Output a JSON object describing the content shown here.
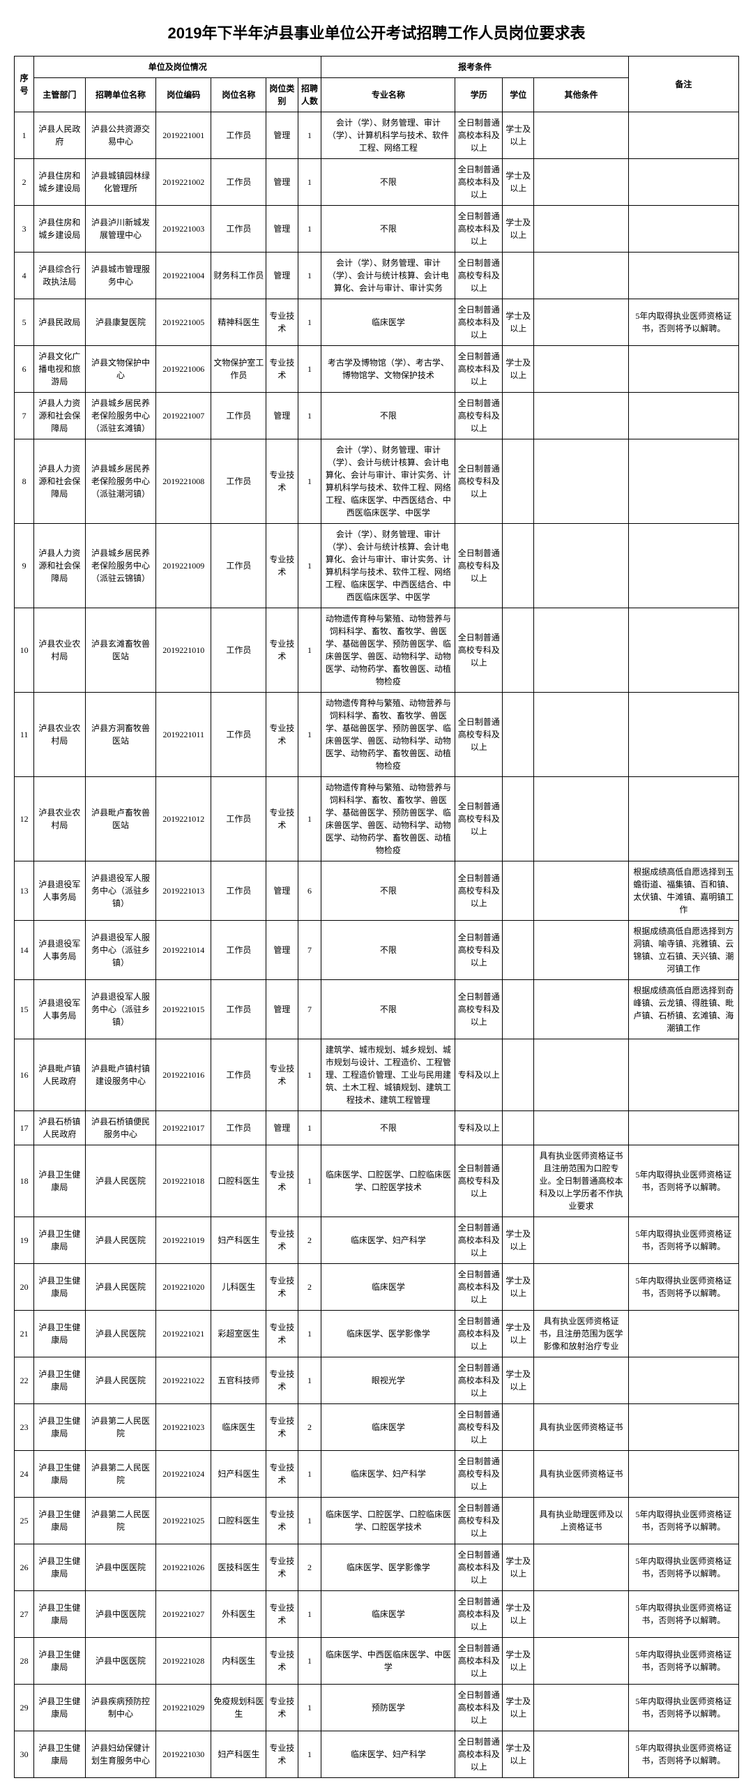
{
  "title": "2019年下半年泸县事业单位公开考试招聘工作人员岗位要求表",
  "headers": {
    "seq": "序号",
    "unit_group": "单位及岗位情况",
    "dept": "主管部门",
    "unit": "招聘单位名称",
    "code": "岗位编码",
    "pname": "岗位名称",
    "ptype": "岗位类别",
    "count": "招聘人数",
    "req_group": "报考条件",
    "spec": "专业名称",
    "edu": "学历",
    "deg": "学位",
    "other": "其他条件",
    "remark": "备注"
  },
  "rows": [
    {
      "seq": "1",
      "dept": "泸县人民政府",
      "unit": "泸县公共资源交易中心",
      "code": "2019221001",
      "pname": "工作员",
      "ptype": "管理",
      "count": "1",
      "spec": "会计（学）、财务管理、审计（学）、计算机科学与技术、软件工程、网络工程",
      "edu": "全日制普通高校本科及以上",
      "deg": "学士及以上",
      "other": "",
      "remark": ""
    },
    {
      "seq": "2",
      "dept": "泸县住房和城乡建设局",
      "unit": "泸县城镇园林绿化管理所",
      "code": "2019221002",
      "pname": "工作员",
      "ptype": "管理",
      "count": "1",
      "spec": "不限",
      "edu": "全日制普通高校本科及以上",
      "deg": "学士及以上",
      "other": "",
      "remark": ""
    },
    {
      "seq": "3",
      "dept": "泸县住房和城乡建设局",
      "unit": "泸县泸川新城发展管理中心",
      "code": "2019221003",
      "pname": "工作员",
      "ptype": "管理",
      "count": "1",
      "spec": "不限",
      "edu": "全日制普通高校本科及以上",
      "deg": "学士及以上",
      "other": "",
      "remark": ""
    },
    {
      "seq": "4",
      "dept": "泸县综合行政执法局",
      "unit": "泸县城市管理服务中心",
      "code": "2019221004",
      "pname": "财务科工作员",
      "ptype": "管理",
      "count": "1",
      "spec": "会计（学）、财务管理、审计（学）、会计与统计核算、会计电算化、会计与审计、审计实务",
      "edu": "全日制普通高校专科及以上",
      "deg": "",
      "other": "",
      "remark": ""
    },
    {
      "seq": "5",
      "dept": "泸县民政局",
      "unit": "泸县康复医院",
      "code": "2019221005",
      "pname": "精神科医生",
      "ptype": "专业技术",
      "count": "1",
      "spec": "临床医学",
      "edu": "全日制普通高校本科及以上",
      "deg": "学士及以上",
      "other": "",
      "remark": "5年内取得执业医师资格证书，否则将予以解聘。"
    },
    {
      "seq": "6",
      "dept": "泸县文化广播电视和旅游局",
      "unit": "泸县文物保护中心",
      "code": "2019221006",
      "pname": "文物保护室工作员",
      "ptype": "专业技术",
      "count": "1",
      "spec": "考古学及博物馆（学）、考古学、博物馆学、文物保护技术",
      "edu": "全日制普通高校本科及以上",
      "deg": "学士及以上",
      "other": "",
      "remark": ""
    },
    {
      "seq": "7",
      "dept": "泸县人力资源和社会保障局",
      "unit": "泸县城乡居民养老保险服务中心（派驻玄滩镇）",
      "code": "2019221007",
      "pname": "工作员",
      "ptype": "管理",
      "count": "1",
      "spec": "不限",
      "edu": "全日制普通高校专科及以上",
      "deg": "",
      "other": "",
      "remark": ""
    },
    {
      "seq": "8",
      "dept": "泸县人力资源和社会保障局",
      "unit": "泸县城乡居民养老保险服务中心（派驻潮河镇）",
      "code": "2019221008",
      "pname": "工作员",
      "ptype": "专业技术",
      "count": "1",
      "spec": "会计（学）、财务管理、审计（学）、会计与统计核算、会计电算化、会计与审计、审计实务、计算机科学与技术、软件工程、网络工程、临床医学、中西医结合、中西医临床医学、中医学",
      "edu": "全日制普通高校专科及以上",
      "deg": "",
      "other": "",
      "remark": ""
    },
    {
      "seq": "9",
      "dept": "泸县人力资源和社会保障局",
      "unit": "泸县城乡居民养老保险服务中心（派驻云锦镇）",
      "code": "2019221009",
      "pname": "工作员",
      "ptype": "专业技术",
      "count": "1",
      "spec": "会计（学）、财务管理、审计（学）、会计与统计核算、会计电算化、会计与审计、审计实务、计算机科学与技术、软件工程、网络工程、临床医学、中西医结合、中西医临床医学、中医学",
      "edu": "全日制普通高校专科及以上",
      "deg": "",
      "other": "",
      "remark": ""
    },
    {
      "seq": "10",
      "dept": "泸县农业农村局",
      "unit": "泸县玄滩畜牧兽医站",
      "code": "2019221010",
      "pname": "工作员",
      "ptype": "专业技术",
      "count": "1",
      "spec": "动物遗传育种与繁殖、动物营养与饲料科学、畜牧、畜牧学、兽医学、基础兽医学、预防兽医学、临床兽医学、兽医、动物科学、动物医学、动物药学、畜牧兽医、动植物检疫",
      "edu": "全日制普通高校专科及以上",
      "deg": "",
      "other": "",
      "remark": ""
    },
    {
      "seq": "11",
      "dept": "泸县农业农村局",
      "unit": "泸县方洞畜牧兽医站",
      "code": "2019221011",
      "pname": "工作员",
      "ptype": "专业技术",
      "count": "1",
      "spec": "动物遗传育种与繁殖、动物营养与饲料科学、畜牧、畜牧学、兽医学、基础兽医学、预防兽医学、临床兽医学、兽医、动物科学、动物医学、动物药学、畜牧兽医、动植物检疫",
      "edu": "全日制普通高校专科及以上",
      "deg": "",
      "other": "",
      "remark": ""
    },
    {
      "seq": "12",
      "dept": "泸县农业农村局",
      "unit": "泸县毗卢畜牧兽医站",
      "code": "2019221012",
      "pname": "工作员",
      "ptype": "专业技术",
      "count": "1",
      "spec": "动物遗传育种与繁殖、动物营养与饲料科学、畜牧、畜牧学、兽医学、基础兽医学、预防兽医学、临床兽医学、兽医、动物科学、动物医学、动物药学、畜牧兽医、动植物检疫",
      "edu": "全日制普通高校专科及以上",
      "deg": "",
      "other": "",
      "remark": ""
    },
    {
      "seq": "13",
      "dept": "泸县退役军人事务局",
      "unit": "泸县退役军人服务中心（派驻乡镇）",
      "code": "2019221013",
      "pname": "工作员",
      "ptype": "管理",
      "count": "6",
      "spec": "不限",
      "edu": "全日制普通高校专科及以上",
      "deg": "",
      "other": "",
      "remark": "根据成绩高低自愿选择到玉蟾街道、福集镇、百和镇、太伏镇、牛滩镇、嘉明镇工作"
    },
    {
      "seq": "14",
      "dept": "泸县退役军人事务局",
      "unit": "泸县退役军人服务中心（派驻乡镇）",
      "code": "2019221014",
      "pname": "工作员",
      "ptype": "管理",
      "count": "7",
      "spec": "不限",
      "edu": "全日制普通高校专科及以上",
      "deg": "",
      "other": "",
      "remark": "根据成绩高低自愿选择到方洞镇、喻寺镇、兆雅镇、云锦镇、立石镇、天兴镇、潮河镇工作"
    },
    {
      "seq": "15",
      "dept": "泸县退役军人事务局",
      "unit": "泸县退役军人服务中心（派驻乡镇）",
      "code": "2019221015",
      "pname": "工作员",
      "ptype": "管理",
      "count": "7",
      "spec": "不限",
      "edu": "全日制普通高校专科及以上",
      "deg": "",
      "other": "",
      "remark": "根据成绩高低自愿选择到奇峰镇、云龙镇、得胜镇、毗卢镇、石桥镇、玄滩镇、海潮镇工作"
    },
    {
      "seq": "16",
      "dept": "泸县毗卢镇人民政府",
      "unit": "泸县毗卢镇村镇建设服务中心",
      "code": "2019221016",
      "pname": "工作员",
      "ptype": "专业技术",
      "count": "1",
      "spec": "建筑学、城市规划、城乡规划、城市规划与设计、工程造价、工程管理、工程造价管理、工业与民用建筑、土木工程、城镇规划、建筑工程技术、建筑工程管理",
      "edu": "专科及以上",
      "deg": "",
      "other": "",
      "remark": ""
    },
    {
      "seq": "17",
      "dept": "泸县石桥镇人民政府",
      "unit": "泸县石桥镇便民服务中心",
      "code": "2019221017",
      "pname": "工作员",
      "ptype": "管理",
      "count": "1",
      "spec": "不限",
      "edu": "专科及以上",
      "deg": "",
      "other": "",
      "remark": ""
    },
    {
      "seq": "18",
      "dept": "泸县卫生健康局",
      "unit": "泸县人民医院",
      "code": "2019221018",
      "pname": "口腔科医生",
      "ptype": "专业技术",
      "count": "1",
      "spec": "临床医学、口腔医学、口腔临床医学、口腔医学技术",
      "edu": "全日制普通高校专科及以上",
      "deg": "",
      "other": "具有执业医师资格证书且注册范围为口腔专业。全日制普通高校本科及以上学历者不作执业要求",
      "remark": "5年内取得执业医师资格证书，否则将予以解聘。"
    },
    {
      "seq": "19",
      "dept": "泸县卫生健康局",
      "unit": "泸县人民医院",
      "code": "2019221019",
      "pname": "妇产科医生",
      "ptype": "专业技术",
      "count": "2",
      "spec": "临床医学、妇产科学",
      "edu": "全日制普通高校本科及以上",
      "deg": "学士及以上",
      "other": "",
      "remark": "5年内取得执业医师资格证书，否则将予以解聘。"
    },
    {
      "seq": "20",
      "dept": "泸县卫生健康局",
      "unit": "泸县人民医院",
      "code": "2019221020",
      "pname": "儿科医生",
      "ptype": "专业技术",
      "count": "2",
      "spec": "临床医学",
      "edu": "全日制普通高校本科及以上",
      "deg": "学士及以上",
      "other": "",
      "remark": "5年内取得执业医师资格证书，否则将予以解聘。"
    },
    {
      "seq": "21",
      "dept": "泸县卫生健康局",
      "unit": "泸县人民医院",
      "code": "2019221021",
      "pname": "彩超室医生",
      "ptype": "专业技术",
      "count": "1",
      "spec": "临床医学、医学影像学",
      "edu": "全日制普通高校本科及以上",
      "deg": "学士及以上",
      "other": "具有执业医师资格证书，且注册范围为医学影像和放射治疗专业",
      "remark": ""
    },
    {
      "seq": "22",
      "dept": "泸县卫生健康局",
      "unit": "泸县人民医院",
      "code": "2019221022",
      "pname": "五官科技师",
      "ptype": "专业技术",
      "count": "1",
      "spec": "眼视光学",
      "edu": "全日制普通高校本科及以上",
      "deg": "学士及以上",
      "other": "",
      "remark": ""
    },
    {
      "seq": "23",
      "dept": "泸县卫生健康局",
      "unit": "泸县第二人民医院",
      "code": "2019221023",
      "pname": "临床医生",
      "ptype": "专业技术",
      "count": "2",
      "spec": "临床医学",
      "edu": "全日制普通高校专科及以上",
      "deg": "",
      "other": "具有执业医师资格证书",
      "remark": ""
    },
    {
      "seq": "24",
      "dept": "泸县卫生健康局",
      "unit": "泸县第二人民医院",
      "code": "2019221024",
      "pname": "妇产科医生",
      "ptype": "专业技术",
      "count": "1",
      "spec": "临床医学、妇产科学",
      "edu": "全日制普通高校专科及以上",
      "deg": "",
      "other": "具有执业医师资格证书",
      "remark": ""
    },
    {
      "seq": "25",
      "dept": "泸县卫生健康局",
      "unit": "泸县第二人民医院",
      "code": "2019221025",
      "pname": "口腔科医生",
      "ptype": "专业技术",
      "count": "1",
      "spec": "临床医学、口腔医学、口腔临床医学、口腔医学技术",
      "edu": "全日制普通高校专科及以上",
      "deg": "",
      "other": "具有执业助理医师及以上资格证书",
      "remark": "5年内取得执业医师资格证书，否则将予以解聘。"
    },
    {
      "seq": "26",
      "dept": "泸县卫生健康局",
      "unit": "泸县中医医院",
      "code": "2019221026",
      "pname": "医技科医生",
      "ptype": "专业技术",
      "count": "2",
      "spec": "临床医学、医学影像学",
      "edu": "全日制普通高校本科及以上",
      "deg": "学士及以上",
      "other": "",
      "remark": "5年内取得执业医师资格证书，否则将予以解聘。"
    },
    {
      "seq": "27",
      "dept": "泸县卫生健康局",
      "unit": "泸县中医医院",
      "code": "2019221027",
      "pname": "外科医生",
      "ptype": "专业技术",
      "count": "1",
      "spec": "临床医学",
      "edu": "全日制普通高校本科及以上",
      "deg": "学士及以上",
      "other": "",
      "remark": "5年内取得执业医师资格证书，否则将予以解聘。"
    },
    {
      "seq": "28",
      "dept": "泸县卫生健康局",
      "unit": "泸县中医医院",
      "code": "2019221028",
      "pname": "内科医生",
      "ptype": "专业技术",
      "count": "1",
      "spec": "临床医学、中西医临床医学、中医学",
      "edu": "全日制普通高校本科及以上",
      "deg": "学士及以上",
      "other": "",
      "remark": "5年内取得执业医师资格证书，否则将予以解聘。"
    },
    {
      "seq": "29",
      "dept": "泸县卫生健康局",
      "unit": "泸县疾病预防控制中心",
      "code": "2019221029",
      "pname": "免疫规划科医生",
      "ptype": "专业技术",
      "count": "1",
      "spec": "预防医学",
      "edu": "全日制普通高校本科及以上",
      "deg": "学士及以上",
      "other": "",
      "remark": "5年内取得执业医师资格证书，否则将予以解聘。"
    },
    {
      "seq": "30",
      "dept": "泸县卫生健康局",
      "unit": "泸县妇幼保健计划生育服务中心",
      "code": "2019221030",
      "pname": "妇产科医生",
      "ptype": "专业技术",
      "count": "1",
      "spec": "临床医学、妇产科学",
      "edu": "全日制普通高校本科及以上",
      "deg": "学士及以上",
      "other": "",
      "remark": "5年内取得执业医师资格证书，否则将予以解聘。"
    }
  ]
}
